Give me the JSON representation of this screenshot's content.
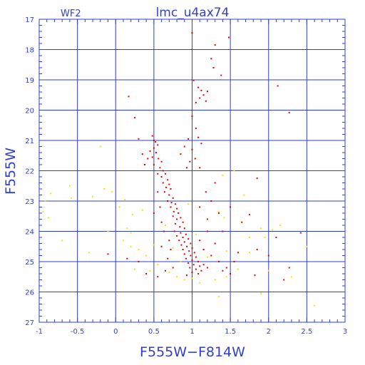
{
  "chart_data": {
    "type": "scatter",
    "title": "lmc_u4ax74",
    "panel_label": "WF2",
    "xlabel": "F555W−F814W",
    "ylabel": "F555W",
    "xlim": [
      -1,
      3
    ],
    "ylim": [
      27,
      17
    ],
    "y_inverted": true,
    "grid": true,
    "x_ticks": [
      {
        "value": -1,
        "label": "-1"
      },
      {
        "value": -0.5,
        "label": "-0.5"
      },
      {
        "value": 0,
        "label": "0"
      },
      {
        "value": 0.5,
        "label": "0.5"
      },
      {
        "value": 1,
        "label": "1"
      },
      {
        "value": 1.5,
        "label": "1.5"
      },
      {
        "value": 2,
        "label": "2"
      },
      {
        "value": 2.5,
        "label": "2.5"
      },
      {
        "value": 3,
        "label": "3"
      }
    ],
    "y_ticks": [
      {
        "value": 17,
        "label": "17"
      },
      {
        "value": 18,
        "label": "18"
      },
      {
        "value": 19,
        "label": "19"
      },
      {
        "value": 20,
        "label": "20"
      },
      {
        "value": 21,
        "label": "21"
      },
      {
        "value": 22,
        "label": "22"
      },
      {
        "value": 23,
        "label": "23"
      },
      {
        "value": 24,
        "label": "24"
      },
      {
        "value": 25,
        "label": "25"
      },
      {
        "value": 26,
        "label": "26"
      },
      {
        "value": 27,
        "label": "27"
      }
    ],
    "colors": {
      "axes": "#2f3fd0",
      "grid": "#2f3fd0",
      "red_points": "#e00000",
      "yellow_points": "#f2e600"
    },
    "series": [
      {
        "color": "red",
        "points": [
          [
            1.0,
            17.45
          ],
          [
            1.3,
            17.85
          ],
          [
            1.48,
            17.6
          ],
          [
            1.25,
            18.3
          ],
          [
            1.28,
            18.6
          ],
          [
            1.38,
            18.85
          ],
          [
            1.02,
            19.02
          ],
          [
            1.08,
            19.25
          ],
          [
            1.12,
            19.35
          ],
          [
            1.15,
            19.5
          ],
          [
            1.2,
            19.38
          ],
          [
            1.1,
            19.6
          ],
          [
            1.18,
            19.7
          ],
          [
            1.05,
            19.75
          ],
          [
            0.17,
            19.55
          ],
          [
            2.12,
            19.2
          ],
          [
            0.25,
            20.25
          ],
          [
            2.27,
            20.08
          ],
          [
            1.0,
            20.2
          ],
          [
            1.05,
            20.6
          ],
          [
            1.08,
            20.9
          ],
          [
            1.12,
            21.1
          ],
          [
            1.0,
            21.3
          ],
          [
            1.04,
            21.6
          ],
          [
            1.1,
            21.9
          ],
          [
            0.95,
            20.95
          ],
          [
            0.9,
            21.2
          ],
          [
            0.85,
            21.45
          ],
          [
            0.97,
            21.7
          ],
          [
            0.93,
            21.9
          ],
          [
            0.48,
            20.85
          ],
          [
            0.5,
            21.0
          ],
          [
            0.52,
            21.05
          ],
          [
            0.55,
            21.15
          ],
          [
            0.5,
            21.25
          ],
          [
            0.45,
            21.35
          ],
          [
            0.53,
            21.4
          ],
          [
            0.48,
            21.55
          ],
          [
            0.56,
            21.6
          ],
          [
            0.6,
            21.7
          ],
          [
            0.5,
            21.8
          ],
          [
            0.58,
            21.9
          ],
          [
            0.62,
            22.0
          ],
          [
            0.55,
            22.1
          ],
          [
            0.3,
            20.95
          ],
          [
            0.35,
            21.45
          ],
          [
            0.42,
            21.6
          ],
          [
            0.38,
            21.8
          ],
          [
            0.65,
            22.1
          ],
          [
            0.6,
            22.2
          ],
          [
            0.68,
            22.3
          ],
          [
            0.62,
            22.4
          ],
          [
            0.7,
            22.45
          ],
          [
            0.66,
            22.55
          ],
          [
            0.72,
            22.6
          ],
          [
            0.64,
            22.7
          ],
          [
            0.7,
            22.8
          ],
          [
            0.75,
            22.9
          ],
          [
            0.68,
            23.0
          ],
          [
            0.73,
            23.05
          ],
          [
            0.78,
            23.1
          ],
          [
            0.72,
            23.2
          ],
          [
            0.8,
            23.25
          ],
          [
            0.76,
            23.35
          ],
          [
            0.82,
            23.4
          ],
          [
            0.75,
            23.5
          ],
          [
            0.85,
            23.55
          ],
          [
            0.8,
            23.6
          ],
          [
            0.88,
            23.7
          ],
          [
            0.78,
            23.75
          ],
          [
            0.84,
            23.85
          ],
          [
            0.9,
            23.9
          ],
          [
            0.77,
            24.0
          ],
          [
            0.85,
            24.05
          ],
          [
            0.92,
            24.1
          ],
          [
            0.8,
            24.15
          ],
          [
            0.88,
            24.2
          ],
          [
            0.95,
            24.25
          ],
          [
            0.83,
            24.3
          ],
          [
            0.9,
            24.35
          ],
          [
            0.98,
            24.4
          ],
          [
            0.86,
            24.45
          ],
          [
            0.93,
            24.5
          ],
          [
            1.0,
            24.55
          ],
          [
            0.88,
            24.6
          ],
          [
            0.96,
            24.65
          ],
          [
            1.03,
            24.7
          ],
          [
            0.9,
            24.75
          ],
          [
            0.98,
            24.8
          ],
          [
            1.05,
            24.85
          ],
          [
            0.92,
            24.9
          ],
          [
            1.0,
            24.95
          ],
          [
            1.08,
            25.0
          ],
          [
            0.95,
            25.05
          ],
          [
            1.02,
            25.1
          ],
          [
            1.1,
            25.15
          ],
          [
            0.97,
            25.2
          ],
          [
            1.05,
            25.25
          ],
          [
            1.12,
            25.3
          ],
          [
            1.0,
            25.35
          ],
          [
            1.08,
            25.4
          ],
          [
            0.93,
            25.45
          ],
          [
            1.15,
            25.1
          ],
          [
            1.2,
            25.2
          ],
          [
            0.7,
            24.3
          ],
          [
            0.72,
            24.6
          ],
          [
            0.68,
            24.9
          ],
          [
            0.75,
            25.2
          ],
          [
            0.65,
            25.3
          ],
          [
            0.6,
            24.5
          ],
          [
            0.63,
            24.0
          ],
          [
            1.1,
            24.3
          ],
          [
            1.15,
            24.6
          ],
          [
            1.2,
            24.0
          ],
          [
            1.25,
            24.8
          ],
          [
            1.3,
            24.4
          ],
          [
            1.35,
            25.0
          ],
          [
            1.4,
            25.3
          ],
          [
            1.45,
            25.2
          ],
          [
            1.5,
            25.4
          ],
          [
            1.55,
            25.0
          ],
          [
            1.6,
            24.7
          ],
          [
            1.2,
            23.6
          ],
          [
            1.1,
            23.2
          ],
          [
            1.18,
            22.7
          ],
          [
            1.3,
            22.4
          ],
          [
            1.35,
            23.4
          ],
          [
            1.25,
            23.0
          ],
          [
            0.55,
            22.7
          ],
          [
            0.58,
            23.2
          ],
          [
            0.6,
            23.7
          ],
          [
            0.5,
            23.4
          ],
          [
            1.5,
            23.2
          ],
          [
            1.65,
            23.7
          ],
          [
            1.4,
            24.0
          ],
          [
            1.85,
            22.25
          ],
          [
            1.75,
            23.45
          ],
          [
            2.1,
            24.2
          ],
          [
            2.42,
            24.05
          ],
          [
            1.85,
            24.6
          ],
          [
            2.0,
            24.8
          ],
          [
            2.27,
            25.2
          ],
          [
            1.82,
            25.45
          ],
          [
            2.2,
            25.6
          ],
          [
            -0.1,
            24.75
          ],
          [
            0.15,
            24.9
          ],
          [
            0.3,
            25.0
          ],
          [
            0.4,
            25.4
          ],
          [
            0.55,
            25.5
          ]
        ]
      },
      {
        "color": "yellow",
        "points": [
          [
            -0.85,
            22.75
          ],
          [
            -0.92,
            23.0
          ],
          [
            -0.6,
            22.5
          ],
          [
            -0.58,
            22.9
          ],
          [
            -0.3,
            22.85
          ],
          [
            -0.15,
            22.6
          ],
          [
            -0.05,
            22.7
          ],
          [
            -0.95,
            23.35
          ],
          [
            -0.88,
            23.55
          ],
          [
            -0.7,
            24.3
          ],
          [
            -0.35,
            24.7
          ],
          [
            -0.1,
            24.0
          ],
          [
            0.05,
            23.2
          ],
          [
            0.15,
            23.9
          ],
          [
            0.1,
            24.3
          ],
          [
            0.2,
            24.5
          ],
          [
            0.3,
            24.6
          ],
          [
            0.4,
            24.8
          ],
          [
            0.5,
            24.45
          ],
          [
            0.55,
            25.1
          ],
          [
            0.45,
            25.3
          ],
          [
            0.25,
            25.25
          ],
          [
            0.7,
            25.35
          ],
          [
            0.8,
            25.5
          ],
          [
            0.9,
            25.6
          ],
          [
            1.0,
            25.55
          ],
          [
            1.1,
            25.7
          ],
          [
            1.3,
            25.6
          ],
          [
            1.45,
            25.5
          ],
          [
            1.6,
            25.25
          ],
          [
            1.2,
            24.85
          ],
          [
            1.45,
            24.65
          ],
          [
            1.75,
            24.7
          ],
          [
            1.95,
            24.2
          ],
          [
            2.05,
            23.95
          ],
          [
            1.35,
            23.35
          ],
          [
            1.42,
            23.55
          ],
          [
            1.68,
            22.8
          ],
          [
            1.4,
            22.15
          ],
          [
            1.55,
            22.0
          ],
          [
            -0.2,
            21.2
          ],
          [
            0.12,
            22.95
          ],
          [
            0.22,
            23.45
          ],
          [
            2.3,
            25.5
          ],
          [
            2.5,
            24.5
          ],
          [
            2.6,
            26.45
          ],
          [
            1.9,
            26.05
          ],
          [
            1.35,
            26.15
          ],
          [
            2.0,
            25.3
          ],
          [
            1.75,
            24.2
          ],
          [
            1.9,
            23.9
          ],
          [
            2.15,
            23.8
          ],
          [
            0.75,
            24.55
          ],
          [
            0.85,
            25.0
          ],
          [
            1.05,
            24.1
          ],
          [
            0.65,
            23.8
          ],
          [
            0.95,
            23.1
          ],
          [
            0.35,
            23.3
          ],
          [
            0.2,
            24.05
          ]
        ]
      }
    ]
  }
}
